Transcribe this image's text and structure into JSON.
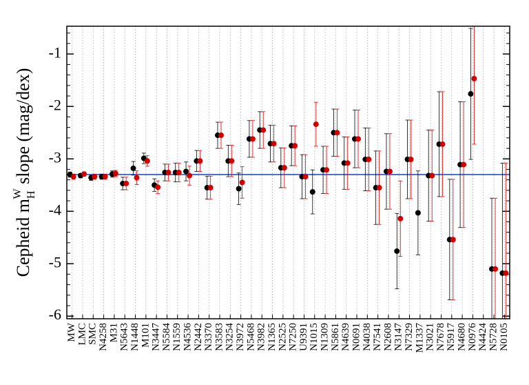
{
  "chart_data": {
    "type": "errorbar",
    "y_label": [
      "Cepheid m",
      "H",
      "W",
      " slope (mag/dex)"
    ],
    "categories": [
      "MW",
      "LMC",
      "SMC",
      "N4258",
      "M31",
      "N5643",
      "N1448",
      "M101",
      "N3447",
      "N5584",
      "N1559",
      "N4536",
      "N2442",
      "N3370",
      "N3583",
      "N3254",
      "N3972",
      "N5468",
      "N3982",
      "N1365",
      "N2525",
      "N7250",
      "U9391",
      "N1015",
      "N1309",
      "N5861",
      "N4639",
      "N0691",
      "N4038",
      "N7541",
      "N2608",
      "N3147",
      "N7329",
      "M1337",
      "N3021",
      "N7678",
      "N5917",
      "N4680",
      "N0976",
      "N4424",
      "N5728",
      "N0105"
    ],
    "series": [
      {
        "color": "#000000",
        "values": [
          -3.3,
          -3.32,
          -3.36,
          -3.34,
          -3.29,
          -3.47,
          -3.18,
          -2.99,
          -3.5,
          -3.26,
          -3.26,
          -3.24,
          -3.04,
          -3.55,
          -2.55,
          -3.04,
          -3.57,
          -2.62,
          -2.45,
          -2.71,
          -3.17,
          -2.75,
          -3.34,
          -3.63,
          -3.21,
          -2.5,
          -3.08,
          -2.62,
          -3.01,
          -3.55,
          -3.24,
          -4.76,
          -3.01,
          -4.03,
          -3.32,
          -2.72,
          -4.54,
          -3.11,
          -1.76,
          null,
          -5.1,
          -5.18
        ],
        "errors": [
          0.05,
          0.04,
          0.05,
          0.05,
          0.06,
          0.12,
          0.13,
          0.1,
          0.12,
          0.16,
          0.18,
          0.18,
          0.2,
          0.22,
          0.25,
          0.3,
          0.3,
          0.35,
          0.35,
          0.35,
          0.38,
          0.38,
          0.42,
          0.42,
          0.45,
          0.45,
          0.5,
          0.55,
          0.6,
          0.7,
          0.72,
          0.72,
          0.75,
          0.8,
          0.87,
          1.0,
          1.15,
          1.2,
          1.25,
          null,
          1.35,
          2.1
        ]
      },
      {
        "color": "#d00000",
        "values": [
          -3.34,
          -3.29,
          -3.34,
          -3.34,
          -3.28,
          -3.47,
          -3.36,
          -3.04,
          -3.54,
          -3.26,
          -3.26,
          -3.32,
          -3.04,
          -3.55,
          -2.55,
          -3.04,
          -3.45,
          -2.62,
          -2.45,
          -2.71,
          -3.17,
          -2.75,
          -3.34,
          -2.34,
          -3.21,
          -2.5,
          -3.08,
          -2.62,
          -3.01,
          -3.55,
          -3.24,
          -4.14,
          -3.01,
          null,
          -3.32,
          -2.72,
          -4.54,
          -3.11,
          -1.47,
          null,
          -5.1,
          -5.18
        ],
        "errors": [
          0.05,
          0.04,
          0.05,
          0.05,
          0.06,
          0.12,
          0.13,
          0.1,
          0.12,
          0.16,
          0.18,
          0.18,
          0.2,
          0.22,
          0.25,
          0.3,
          0.3,
          0.35,
          0.35,
          0.35,
          0.38,
          0.38,
          0.42,
          0.42,
          0.45,
          0.45,
          0.5,
          0.55,
          0.6,
          0.7,
          0.72,
          0.72,
          0.75,
          null,
          0.87,
          1.0,
          1.15,
          1.2,
          1.25,
          null,
          1.35,
          2.1
        ]
      }
    ],
    "hline": {
      "value": -3.3,
      "color": "#4a6fd8"
    },
    "ylim": [
      -6.05,
      -0.47
    ],
    "yticks": [
      -6,
      -5,
      -4,
      -3,
      -2,
      -1
    ],
    "grid": true
  }
}
